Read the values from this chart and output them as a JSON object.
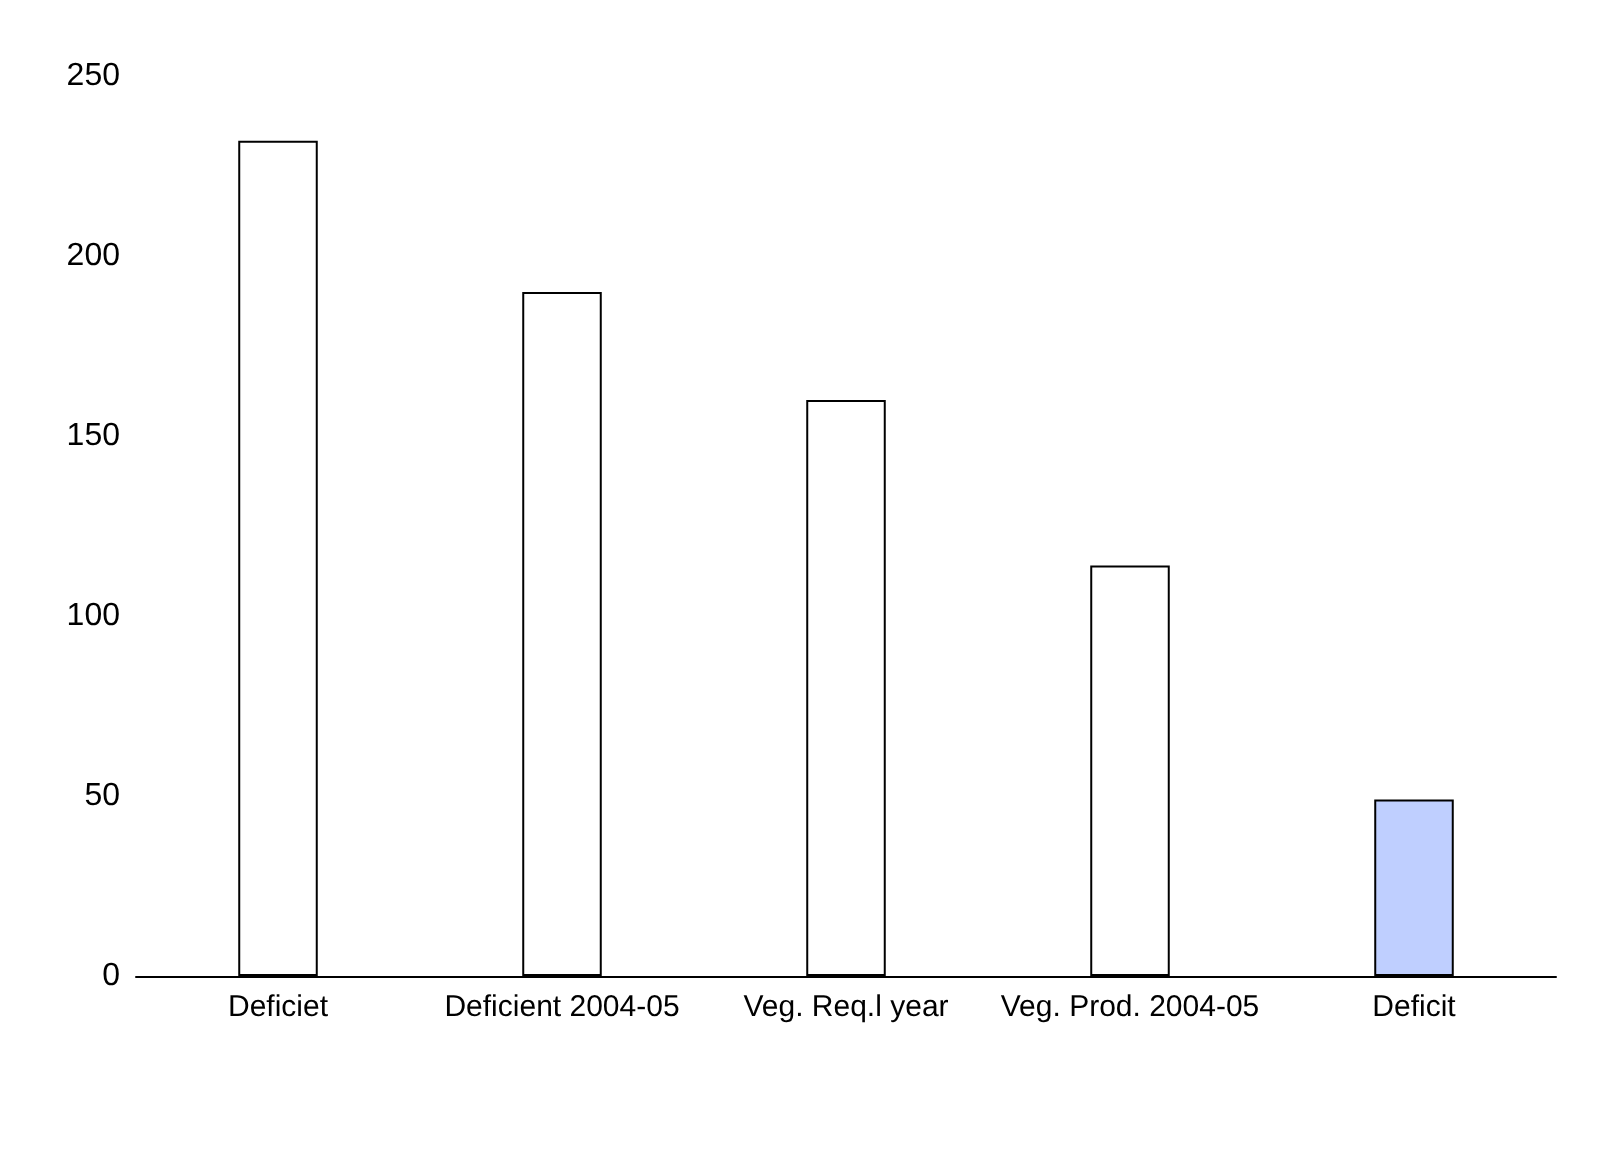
{
  "chart_data": {
    "type": "bar",
    "categories": [
      "Deficiet",
      "Deficient 2004-05",
      "Veg. Req.l year",
      "Veg. Prod. 2004-05",
      "Deficit"
    ],
    "values": [
      232,
      190,
      160,
      114,
      49
    ],
    "colors": [
      "#ffffff",
      "#ffffff",
      "#ffffff",
      "#ffffff",
      "#bfcfff"
    ],
    "ylim": [
      0,
      250
    ],
    "yticks": [
      0,
      50,
      100,
      150,
      200,
      250
    ],
    "grid": false
  }
}
